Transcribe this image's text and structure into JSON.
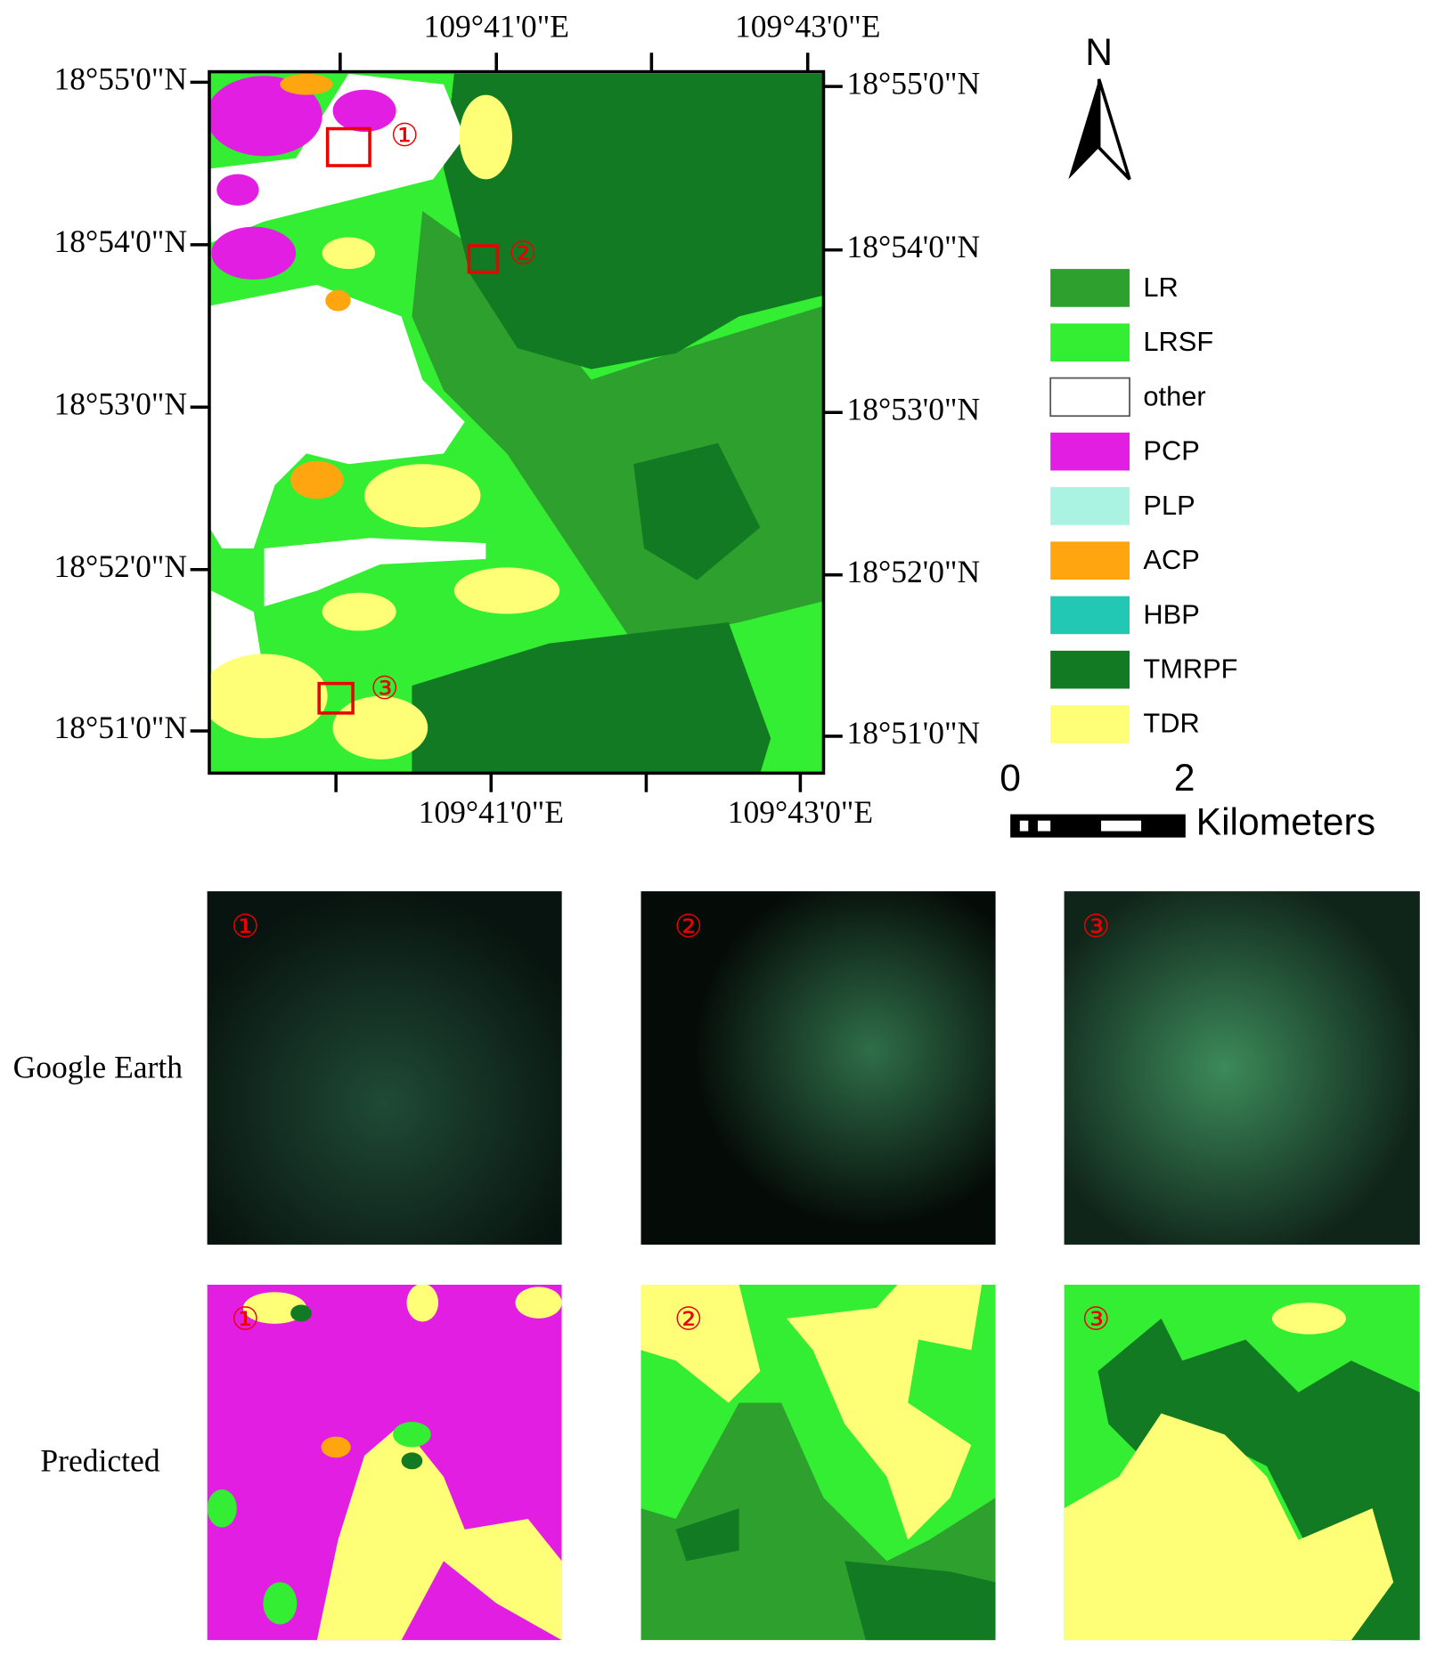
{
  "map": {
    "top_lon_labels": [
      "109°41'0\"E",
      "109°43'0\"E"
    ],
    "bottom_lon_labels": [
      "109°41'0\"E",
      "109°43'0\"E"
    ],
    "left_lat_labels": [
      "18°55'0\"N",
      "18°54'0\"N",
      "18°53'0\"N",
      "18°52'0\"N",
      "18°51'0\"N"
    ],
    "right_lat_labels": [
      "18°55'0\"N",
      "18°54'0\"N",
      "18°53'0\"N",
      "18°52'0\"N",
      "18°51'0\"N"
    ],
    "markers": [
      "①",
      "②",
      "③"
    ]
  },
  "north_arrow": "N",
  "legend": [
    {
      "label": "LR",
      "color": "#2ea02e"
    },
    {
      "label": "LRSF",
      "color": "#33ee33"
    },
    {
      "label": "other",
      "color": "#ffffff"
    },
    {
      "label": "PCP",
      "color": "#e21ee2"
    },
    {
      "label": "PLP",
      "color": "#aaf2e2"
    },
    {
      "label": "ACP",
      "color": "#ffa510"
    },
    {
      "label": "HBP",
      "color": "#22c8b4"
    },
    {
      "label": "TMRPF",
      "color": "#127a22"
    },
    {
      "label": "TDR",
      "color": "#ffff77"
    }
  ],
  "scale_bar": {
    "ticks": [
      "0",
      "2"
    ],
    "unit": "Kilometers"
  },
  "panels": {
    "row_labels": [
      "Google Earth",
      "Predicted"
    ],
    "markers": [
      "①",
      "②",
      "③"
    ]
  }
}
